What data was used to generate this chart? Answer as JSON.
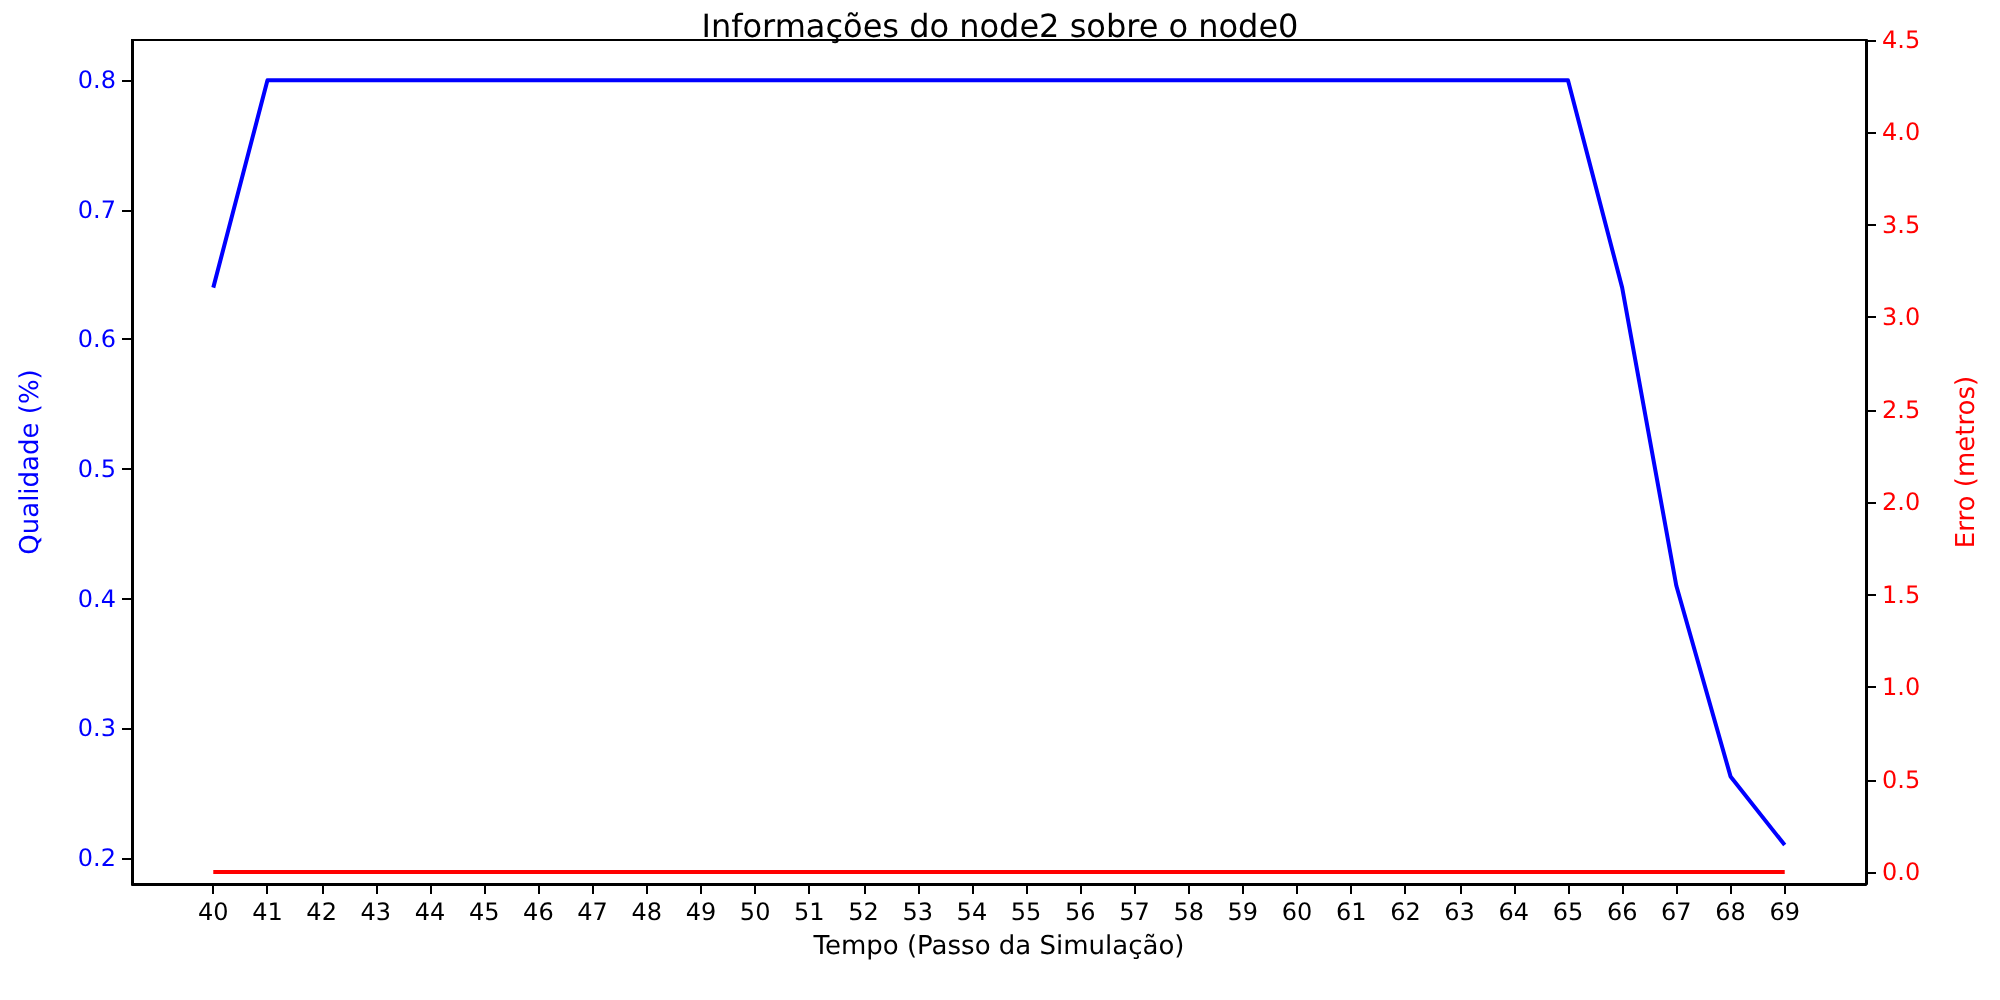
{
  "chart_data": {
    "type": "line",
    "title": "Informações do node2 sobre o node0",
    "xlabel": "Tempo (Passo da Simulação)",
    "ylabel": "Qualidade (%)",
    "y2label": "Erro (metros)",
    "x": [
      40,
      41,
      42,
      43,
      44,
      45,
      46,
      47,
      48,
      49,
      50,
      51,
      52,
      53,
      54,
      55,
      56,
      57,
      58,
      59,
      60,
      61,
      62,
      63,
      64,
      65,
      66,
      67,
      68,
      69
    ],
    "series": [
      {
        "color": "#0000ff",
        "values": [
          0.64,
          0.8,
          0.8,
          0.8,
          0.8,
          0.8,
          0.8,
          0.8,
          0.8,
          0.8,
          0.8,
          0.8,
          0.8,
          0.8,
          0.8,
          0.8,
          0.8,
          0.8,
          0.8,
          0.8,
          0.8,
          0.8,
          0.8,
          0.8,
          0.8,
          0.8,
          0.64,
          0.41,
          0.263,
          0.21
        ]
      },
      {
        "color": "#ff0000",
        "axis": "y2",
        "values": [
          0,
          0,
          0,
          0,
          0,
          0,
          0,
          0,
          0,
          0,
          0,
          0,
          0,
          0,
          0,
          0,
          0,
          0,
          0,
          0,
          0,
          0,
          0,
          0,
          0,
          0,
          0,
          0,
          0,
          0
        ]
      }
    ],
    "xlim": [
      38.5,
      70.5
    ],
    "xticks": [
      40,
      41,
      42,
      43,
      44,
      45,
      46,
      47,
      48,
      49,
      50,
      51,
      52,
      53,
      54,
      55,
      56,
      57,
      58,
      59,
      60,
      61,
      62,
      63,
      64,
      65,
      66,
      67,
      68,
      69
    ],
    "ylim": [
      0.18,
      0.831
    ],
    "yticks": [
      0.2,
      0.3,
      0.4,
      0.5,
      0.6,
      0.7,
      0.8
    ],
    "y2lim": [
      -0.065,
      4.5
    ],
    "y2ticks": [
      {
        "value": 0,
        "label": "0.0"
      },
      0.5,
      {
        "value": 1,
        "label": "1.0"
      },
      1.5,
      {
        "value": 2,
        "label": "2.0"
      },
      2.5,
      {
        "value": 3,
        "label": "3.0"
      },
      3.5,
      {
        "value": 4,
        "label": "4.0"
      },
      4.5
    ],
    "grid": false,
    "marker": "none",
    "line_style": "solid"
  }
}
